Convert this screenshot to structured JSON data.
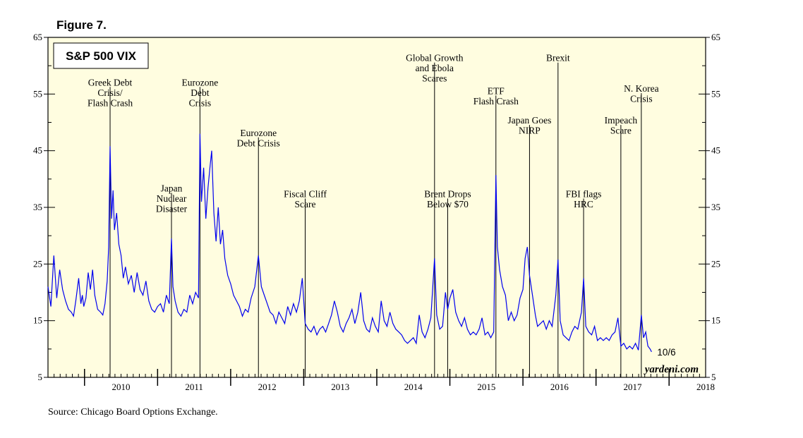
{
  "figure_label": "Figure 7.",
  "source": "Source: Chicago Board Options Exchange.",
  "credit": "yardeni.com",
  "chart_data": {
    "type": "line",
    "title": "S&P 500 VIX",
    "ylim": [
      5,
      65
    ],
    "y_ticks": [
      5,
      15,
      25,
      35,
      45,
      55,
      65
    ],
    "xlim": [
      2009.5,
      2018.5
    ],
    "x_tick_labels": [
      "2010",
      "2011",
      "2012",
      "2013",
      "2014",
      "2015",
      "2016",
      "2017",
      "2018"
    ],
    "end_label": "10/6",
    "series": [
      {
        "name": "VIX",
        "color": "#0000ee",
        "points": [
          [
            2009.5,
            21.0
          ],
          [
            2009.54,
            17.5
          ],
          [
            2009.58,
            26.5
          ],
          [
            2009.62,
            19.0
          ],
          [
            2009.66,
            24.0
          ],
          [
            2009.7,
            20.5
          ],
          [
            2009.74,
            18.5
          ],
          [
            2009.78,
            17.0
          ],
          [
            2009.82,
            16.5
          ],
          [
            2009.85,
            15.8
          ],
          [
            2009.88,
            18.5
          ],
          [
            2009.92,
            22.5
          ],
          [
            2009.95,
            18.0
          ],
          [
            2009.97,
            19.5
          ],
          [
            2009.99,
            17.5
          ],
          [
            2010.02,
            19.0
          ],
          [
            2010.05,
            23.5
          ],
          [
            2010.08,
            20.5
          ],
          [
            2010.11,
            24.0
          ],
          [
            2010.14,
            19.5
          ],
          [
            2010.18,
            17.0
          ],
          [
            2010.22,
            16.5
          ],
          [
            2010.25,
            16.0
          ],
          [
            2010.28,
            18.0
          ],
          [
            2010.31,
            22.0
          ],
          [
            2010.33,
            28.0
          ],
          [
            2010.35,
            45.8
          ],
          [
            2010.37,
            33.0
          ],
          [
            2010.39,
            38.0
          ],
          [
            2010.41,
            31.0
          ],
          [
            2010.44,
            34.0
          ],
          [
            2010.47,
            28.5
          ],
          [
            2010.5,
            26.5
          ],
          [
            2010.53,
            22.5
          ],
          [
            2010.56,
            24.5
          ],
          [
            2010.6,
            21.5
          ],
          [
            2010.64,
            23.0
          ],
          [
            2010.68,
            20.0
          ],
          [
            2010.72,
            23.5
          ],
          [
            2010.76,
            20.5
          ],
          [
            2010.8,
            19.5
          ],
          [
            2010.84,
            22.0
          ],
          [
            2010.88,
            18.5
          ],
          [
            2010.92,
            17.0
          ],
          [
            2010.96,
            16.5
          ],
          [
            2011.0,
            17.5
          ],
          [
            2011.04,
            18.0
          ],
          [
            2011.08,
            16.5
          ],
          [
            2011.12,
            19.5
          ],
          [
            2011.16,
            18.0
          ],
          [
            2011.19,
            29.5
          ],
          [
            2011.21,
            21.0
          ],
          [
            2011.24,
            18.5
          ],
          [
            2011.28,
            16.5
          ],
          [
            2011.32,
            15.8
          ],
          [
            2011.36,
            17.0
          ],
          [
            2011.4,
            16.5
          ],
          [
            2011.44,
            19.5
          ],
          [
            2011.48,
            18.0
          ],
          [
            2011.52,
            20.0
          ],
          [
            2011.56,
            19.0
          ],
          [
            2011.58,
            48.0
          ],
          [
            2011.6,
            36.0
          ],
          [
            2011.63,
            42.0
          ],
          [
            2011.66,
            33.0
          ],
          [
            2011.69,
            38.5
          ],
          [
            2011.72,
            42.5
          ],
          [
            2011.74,
            45.0
          ],
          [
            2011.77,
            34.0
          ],
          [
            2011.8,
            29.0
          ],
          [
            2011.83,
            35.0
          ],
          [
            2011.86,
            28.5
          ],
          [
            2011.89,
            31.0
          ],
          [
            2011.92,
            26.0
          ],
          [
            2011.96,
            23.0
          ],
          [
            2012.0,
            21.5
          ],
          [
            2012.04,
            19.5
          ],
          [
            2012.08,
            18.5
          ],
          [
            2012.12,
            17.5
          ],
          [
            2012.16,
            15.8
          ],
          [
            2012.2,
            17.0
          ],
          [
            2012.24,
            16.5
          ],
          [
            2012.28,
            19.0
          ],
          [
            2012.33,
            21.0
          ],
          [
            2012.38,
            26.5
          ],
          [
            2012.42,
            21.0
          ],
          [
            2012.46,
            19.5
          ],
          [
            2012.5,
            18.0
          ],
          [
            2012.54,
            16.5
          ],
          [
            2012.58,
            16.0
          ],
          [
            2012.62,
            14.5
          ],
          [
            2012.66,
            16.5
          ],
          [
            2012.7,
            15.5
          ],
          [
            2012.74,
            14.5
          ],
          [
            2012.78,
            17.5
          ],
          [
            2012.82,
            16.0
          ],
          [
            2012.86,
            18.0
          ],
          [
            2012.9,
            16.5
          ],
          [
            2012.94,
            18.5
          ],
          [
            2012.98,
            22.5
          ],
          [
            2013.02,
            14.5
          ],
          [
            2013.06,
            13.5
          ],
          [
            2013.1,
            13.0
          ],
          [
            2013.14,
            14.0
          ],
          [
            2013.18,
            12.5
          ],
          [
            2013.22,
            13.5
          ],
          [
            2013.26,
            14.0
          ],
          [
            2013.3,
            13.0
          ],
          [
            2013.34,
            14.5
          ],
          [
            2013.38,
            16.0
          ],
          [
            2013.42,
            18.5
          ],
          [
            2013.46,
            16.5
          ],
          [
            2013.5,
            14.0
          ],
          [
            2013.54,
            13.0
          ],
          [
            2013.58,
            14.5
          ],
          [
            2013.62,
            15.5
          ],
          [
            2013.66,
            17.0
          ],
          [
            2013.7,
            14.5
          ],
          [
            2013.74,
            16.5
          ],
          [
            2013.78,
            20.0
          ],
          [
            2013.82,
            15.0
          ],
          [
            2013.86,
            13.5
          ],
          [
            2013.9,
            13.0
          ],
          [
            2013.94,
            15.5
          ],
          [
            2013.98,
            14.0
          ],
          [
            2014.02,
            13.0
          ],
          [
            2014.06,
            18.5
          ],
          [
            2014.1,
            15.0
          ],
          [
            2014.14,
            14.0
          ],
          [
            2014.18,
            16.5
          ],
          [
            2014.22,
            14.5
          ],
          [
            2014.26,
            13.5
          ],
          [
            2014.3,
            13.0
          ],
          [
            2014.34,
            12.5
          ],
          [
            2014.38,
            11.5
          ],
          [
            2014.42,
            11.0
          ],
          [
            2014.46,
            11.5
          ],
          [
            2014.5,
            12.0
          ],
          [
            2014.54,
            11.0
          ],
          [
            2014.58,
            16.0
          ],
          [
            2014.62,
            13.0
          ],
          [
            2014.66,
            12.0
          ],
          [
            2014.7,
            13.5
          ],
          [
            2014.74,
            15.5
          ],
          [
            2014.79,
            26.0
          ],
          [
            2014.82,
            16.0
          ],
          [
            2014.86,
            13.5
          ],
          [
            2014.9,
            14.0
          ],
          [
            2014.94,
            20.0
          ],
          [
            2014.97,
            17.0
          ],
          [
            2015.0,
            19.0
          ],
          [
            2015.04,
            20.5
          ],
          [
            2015.08,
            16.5
          ],
          [
            2015.12,
            15.0
          ],
          [
            2015.16,
            14.0
          ],
          [
            2015.2,
            15.5
          ],
          [
            2015.24,
            13.5
          ],
          [
            2015.28,
            12.5
          ],
          [
            2015.32,
            13.0
          ],
          [
            2015.36,
            12.5
          ],
          [
            2015.4,
            13.5
          ],
          [
            2015.44,
            15.5
          ],
          [
            2015.48,
            12.5
          ],
          [
            2015.52,
            13.0
          ],
          [
            2015.56,
            12.0
          ],
          [
            2015.6,
            13.0
          ],
          [
            2015.63,
            40.7
          ],
          [
            2015.65,
            28.0
          ],
          [
            2015.68,
            24.0
          ],
          [
            2015.72,
            21.0
          ],
          [
            2015.76,
            19.5
          ],
          [
            2015.8,
            15.0
          ],
          [
            2015.84,
            16.5
          ],
          [
            2015.88,
            15.0
          ],
          [
            2015.92,
            16.0
          ],
          [
            2015.96,
            19.0
          ],
          [
            2016.0,
            20.5
          ],
          [
            2016.03,
            26.0
          ],
          [
            2016.06,
            28.0
          ],
          [
            2016.09,
            23.0
          ],
          [
            2016.13,
            19.5
          ],
          [
            2016.17,
            16.0
          ],
          [
            2016.2,
            14.0
          ],
          [
            2016.24,
            14.5
          ],
          [
            2016.28,
            15.0
          ],
          [
            2016.32,
            13.5
          ],
          [
            2016.36,
            15.0
          ],
          [
            2016.4,
            14.0
          ],
          [
            2016.45,
            19.5
          ],
          [
            2016.48,
            25.8
          ],
          [
            2016.51,
            15.0
          ],
          [
            2016.55,
            12.5
          ],
          [
            2016.59,
            12.0
          ],
          [
            2016.63,
            11.5
          ],
          [
            2016.67,
            13.0
          ],
          [
            2016.71,
            14.0
          ],
          [
            2016.75,
            13.5
          ],
          [
            2016.8,
            16.5
          ],
          [
            2016.83,
            22.5
          ],
          [
            2016.86,
            14.0
          ],
          [
            2016.9,
            13.0
          ],
          [
            2016.94,
            12.5
          ],
          [
            2016.98,
            14.0
          ],
          [
            2017.02,
            11.5
          ],
          [
            2017.06,
            12.0
          ],
          [
            2017.1,
            11.5
          ],
          [
            2017.14,
            12.0
          ],
          [
            2017.18,
            11.5
          ],
          [
            2017.22,
            12.5
          ],
          [
            2017.26,
            13.0
          ],
          [
            2017.3,
            15.5
          ],
          [
            2017.34,
            10.5
          ],
          [
            2017.38,
            11.0
          ],
          [
            2017.42,
            10.0
          ],
          [
            2017.46,
            10.5
          ],
          [
            2017.5,
            10.0
          ],
          [
            2017.54,
            11.0
          ],
          [
            2017.58,
            9.8
          ],
          [
            2017.62,
            16.0
          ],
          [
            2017.65,
            12.0
          ],
          [
            2017.68,
            13.0
          ],
          [
            2017.71,
            10.5
          ],
          [
            2017.74,
            10.0
          ],
          [
            2017.76,
            9.5
          ]
        ]
      }
    ],
    "events": [
      {
        "x": 2010.35,
        "label_lines": [
          "Greek Debt",
          "Crisis/",
          "Flash Crash"
        ],
        "label_y": 56.5
      },
      {
        "x": 2011.19,
        "label_lines": [
          "Japan",
          "Nuclear",
          "Disaster"
        ],
        "label_y": 37.8
      },
      {
        "x": 2011.58,
        "label_lines": [
          "Eurozone",
          "Debt",
          "Crisis"
        ],
        "label_y": 56.5
      },
      {
        "x": 2012.38,
        "label_lines": [
          "Eurozone",
          "Debt Crisis"
        ],
        "label_y": 47.6
      },
      {
        "x": 2013.02,
        "label_lines": [
          "Fiscal Cliff",
          "Scare"
        ],
        "label_y": 36.8
      },
      {
        "x": 2014.79,
        "label_lines": [
          "Global Growth",
          "and Ebola",
          "Scares"
        ],
        "label_y": 60.8
      },
      {
        "x": 2014.97,
        "label_lines": [
          "Brent Drops",
          "Below $70"
        ],
        "label_y": 36.8
      },
      {
        "x": 2015.63,
        "label_lines": [
          "ETF",
          "Flash Crash"
        ],
        "label_y": 55.0
      },
      {
        "x": 2016.09,
        "label_lines": [
          "Japan Goes",
          "NIRP"
        ],
        "label_y": 49.8
      },
      {
        "x": 2016.48,
        "label_lines": [
          "Brexit"
        ],
        "label_y": 60.8
      },
      {
        "x": 2016.83,
        "label_lines": [
          "FBI flags",
          "HRC"
        ],
        "label_y": 36.8
      },
      {
        "x": 2017.34,
        "label_lines": [
          "Impeach",
          "Scare"
        ],
        "label_y": 49.8
      },
      {
        "x": 2017.62,
        "label_lines": [
          "N. Korea",
          "Crisis"
        ],
        "label_y": 55.4
      }
    ]
  }
}
